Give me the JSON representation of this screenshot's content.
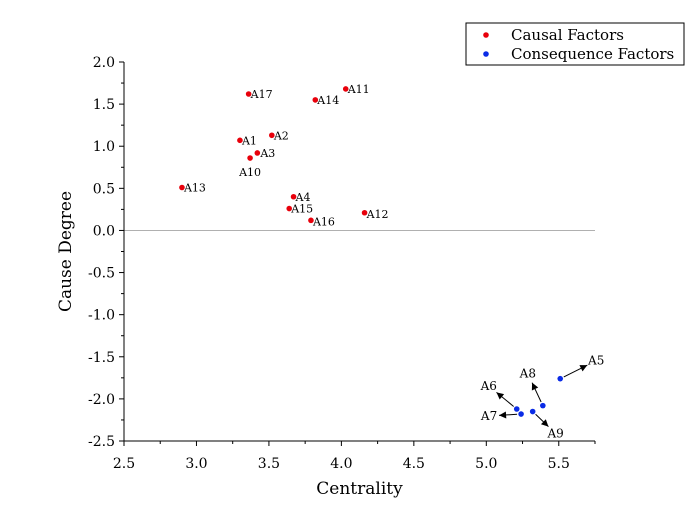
{
  "chart_data": {
    "type": "scatter",
    "xlabel": "Centrality",
    "ylabel": "Cause Degree",
    "xlim": [
      2.5,
      5.75
    ],
    "ylim": [
      -2.5,
      2.0
    ],
    "x_ticks": [
      "2.5",
      "3.0",
      "3.5",
      "4.0",
      "4.5",
      "5.0",
      "5.5"
    ],
    "y_ticks": [
      "2.0",
      "1.5",
      "1.0",
      "0.5",
      "0.0",
      "-0.5",
      "-1.0",
      "-1.5",
      "-2.0",
      "-2.5"
    ],
    "reference_line_y": 0,
    "grid": false,
    "legend_position": "top-right",
    "series": [
      {
        "name": "Causal Factors",
        "color": "#e8000b",
        "points": [
          {
            "label": "A1",
            "x": 3.3,
            "y": 1.07
          },
          {
            "label": "A2",
            "x": 3.52,
            "y": 1.13
          },
          {
            "label": "A3",
            "x": 3.42,
            "y": 0.92
          },
          {
            "label": "A4",
            "x": 3.67,
            "y": 0.4
          },
          {
            "label": "A10",
            "x": 3.37,
            "y": 0.86
          },
          {
            "label": "A11",
            "x": 4.03,
            "y": 1.68
          },
          {
            "label": "A12",
            "x": 4.16,
            "y": 0.21
          },
          {
            "label": "A13",
            "x": 2.9,
            "y": 0.51
          },
          {
            "label": "A14",
            "x": 3.82,
            "y": 1.55
          },
          {
            "label": "A15",
            "x": 3.64,
            "y": 0.26
          },
          {
            "label": "A16",
            "x": 3.79,
            "y": 0.12
          },
          {
            "label": "A17",
            "x": 3.36,
            "y": 1.62
          }
        ]
      },
      {
        "name": "Consequence Factors",
        "color": "#0a2be6",
        "points": [
          {
            "label": "A5",
            "x": 5.51,
            "y": -1.76
          },
          {
            "label": "A6",
            "x": 5.21,
            "y": -2.12
          },
          {
            "label": "A7",
            "x": 5.24,
            "y": -2.18
          },
          {
            "label": "A8",
            "x": 5.39,
            "y": -2.08
          },
          {
            "label": "A9",
            "x": 5.32,
            "y": -2.15
          }
        ]
      }
    ]
  }
}
